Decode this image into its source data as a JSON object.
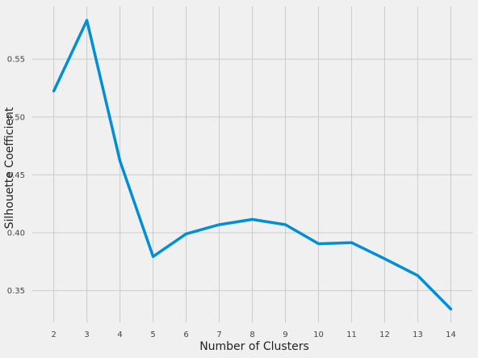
{
  "chart_data": {
    "type": "line",
    "title": "",
    "xlabel": "Number of Clusters",
    "ylabel": "Silhouette Coefficient",
    "x": [
      2,
      3,
      4,
      5,
      6,
      7,
      8,
      9,
      10,
      11,
      12,
      13,
      14
    ],
    "series": [
      {
        "values": [
          0.5225,
          0.5835,
          0.462,
          0.3795,
          0.399,
          0.407,
          0.4115,
          0.407,
          0.3905,
          0.3915,
          0.3775,
          0.363,
          0.334
        ]
      }
    ],
    "xticks": [
      "2",
      "3",
      "4",
      "5",
      "6",
      "7",
      "8",
      "9",
      "10",
      "11",
      "12",
      "13",
      "14"
    ],
    "yticks": [
      {
        "value": 0.35,
        "label": "0.35"
      },
      {
        "value": 0.4,
        "label": "0.40"
      },
      {
        "value": 0.45,
        "label": "0.45"
      },
      {
        "value": 0.5,
        "label": "0.50"
      },
      {
        "value": 0.55,
        "label": "0.55"
      }
    ],
    "xlim": [
      1.35,
      14.65
    ],
    "ylim": [
      0.3225,
      0.5955
    ],
    "grid": true,
    "colors": {
      "background": "#f0f0f0",
      "grid": "#cbcbcb",
      "line": "#008fd5"
    }
  }
}
